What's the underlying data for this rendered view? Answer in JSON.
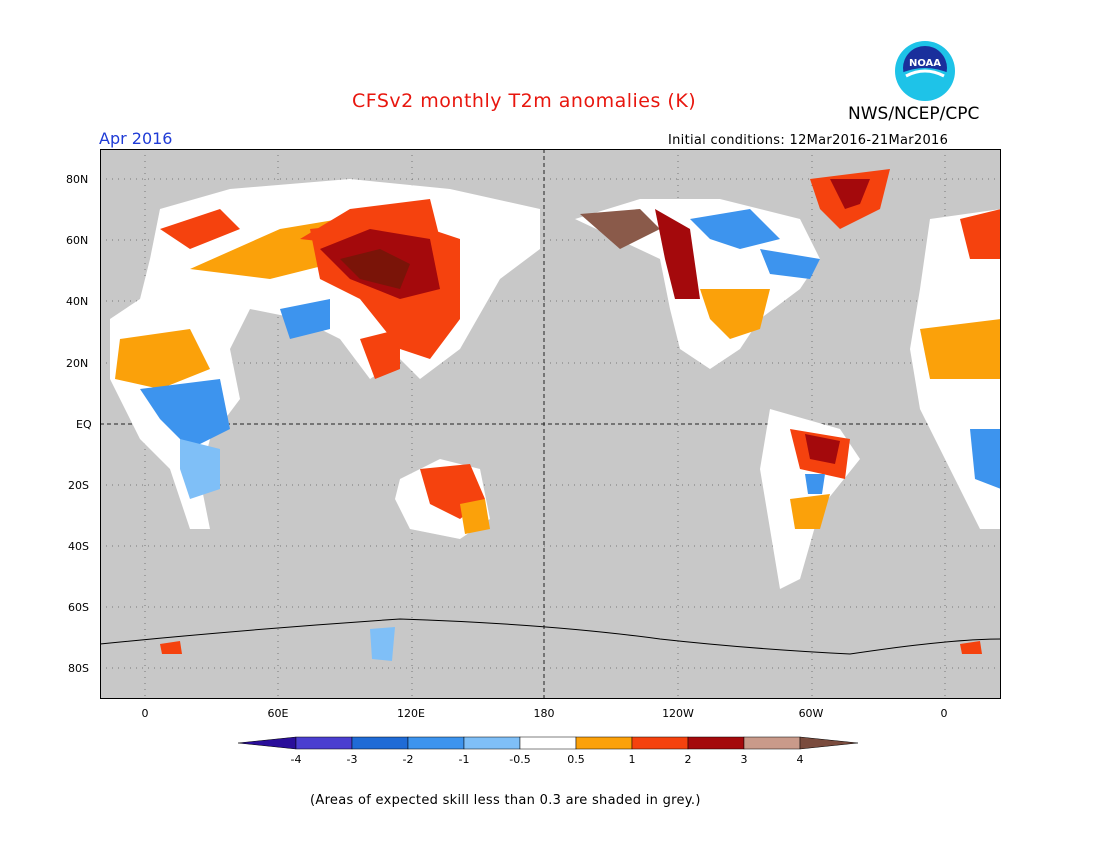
{
  "header": {
    "title": "CFSv2 monthly T2m anomalies (K)",
    "org": "NWS/NCEP/CPC",
    "month": "Apr 2016",
    "initial_conditions": "Initial conditions: 12Mar2016-21Mar2016",
    "logo_text": "NOAA"
  },
  "map": {
    "lat_labels": [
      "80N",
      "60N",
      "40N",
      "20N",
      "EQ",
      "20S",
      "40S",
      "60S",
      "80S"
    ],
    "lon_labels": [
      "0",
      "60E",
      "120E",
      "180",
      "120W",
      "60W",
      "0"
    ],
    "background_color": "#c8c8c8"
  },
  "colorbar": {
    "labels": [
      "-4",
      "-3",
      "-2",
      "-1",
      "-0.5",
      "0.5",
      "1",
      "2",
      "3",
      "4"
    ],
    "colors": [
      "#2a0e9a",
      "#4a3ed0",
      "#1f6bd6",
      "#3d94ee",
      "#7fbff7",
      "#ffffff",
      "#fba10a",
      "#f5420e",
      "#a4090c",
      "#c99a8a",
      "#7a4b3d"
    ]
  },
  "footnote": "(Areas of expected skill less than 0.3 are shaded in grey.)"
}
